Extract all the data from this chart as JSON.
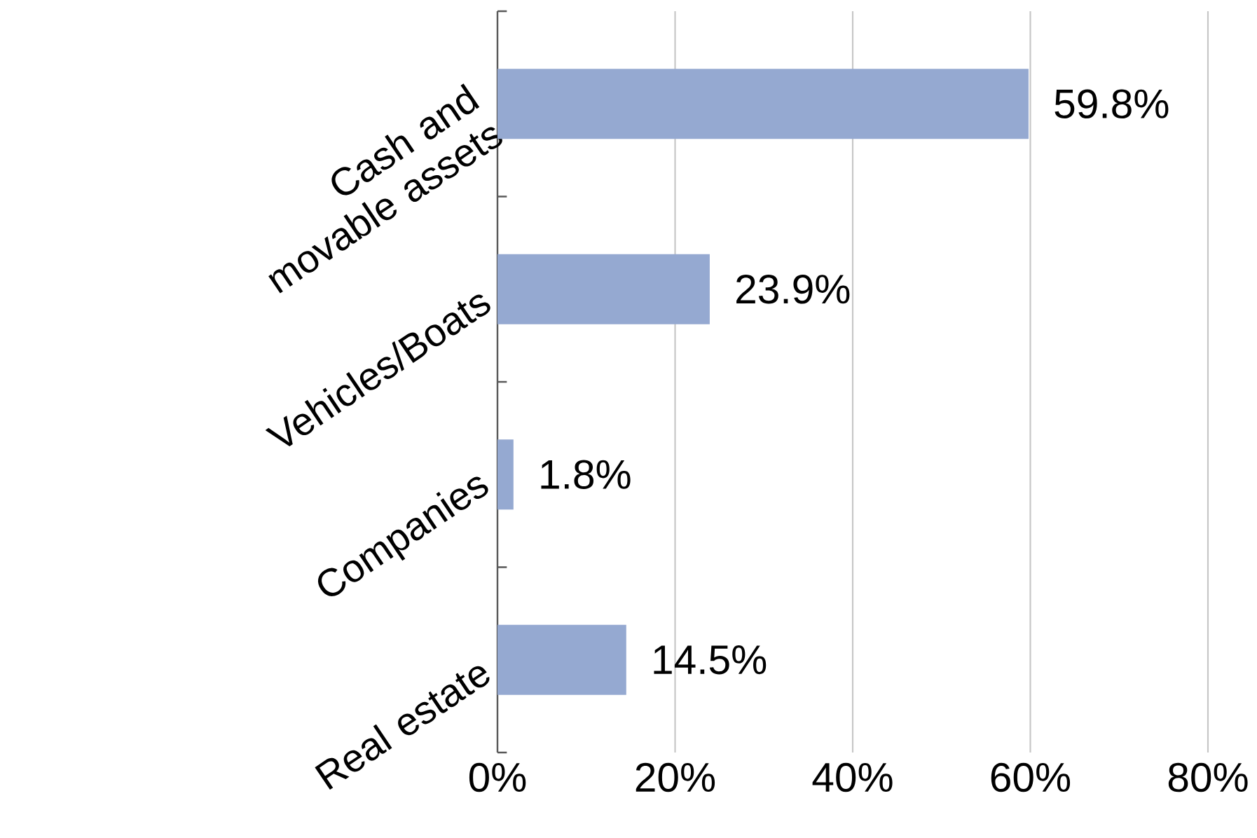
{
  "chart_data": {
    "type": "bar",
    "orientation": "horizontal",
    "categories": [
      "Cash and movable assets",
      "Vehicles/Boats",
      "Companies",
      "Real estate"
    ],
    "values": [
      59.8,
      23.9,
      1.8,
      14.5
    ],
    "value_labels": [
      "59.8%",
      "23.9%",
      "1.8%",
      "14.5%"
    ],
    "color": "#95a9d1",
    "xlim": [
      0,
      80
    ],
    "xticks": [
      {
        "value": 0,
        "label": "0%"
      },
      {
        "value": 20,
        "label": "20%"
      },
      {
        "value": 40,
        "label": "40%"
      },
      {
        "value": 60,
        "label": "60%"
      },
      {
        "value": 80,
        "label": "80%"
      }
    ],
    "grid": "x"
  }
}
